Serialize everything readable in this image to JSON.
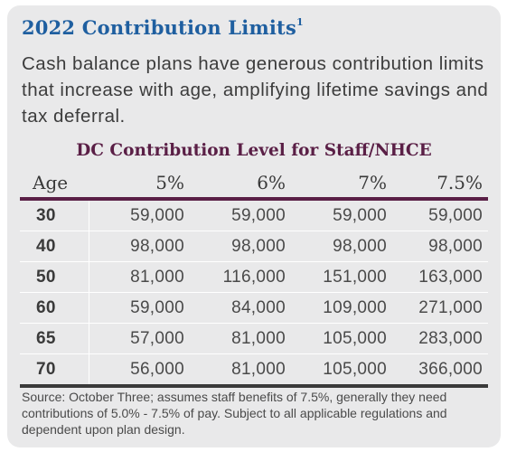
{
  "title": "2022 Contribution Limits",
  "title_sup": "1",
  "intro": "Cash balance plans have generous contribution limits that increase with age, amplifying lifetime savings and tax deferral.",
  "table": {
    "heading": "DC Contribution Level for Staff/NHCE",
    "columns": [
      "Age",
      "5%",
      "6%",
      "7%",
      "7.5%"
    ],
    "rows": [
      [
        "30",
        "59,000",
        "59,000",
        "59,000",
        "59,000"
      ],
      [
        "40",
        "98,000",
        "98,000",
        "98,000",
        "98,000"
      ],
      [
        "50",
        "81,000",
        "116,000",
        "151,000",
        "163,000"
      ],
      [
        "60",
        "59,000",
        "84,000",
        "109,000",
        "271,000"
      ],
      [
        "65",
        "57,000",
        "81,000",
        "105,000",
        "283,000"
      ],
      [
        "70",
        "56,000",
        "81,000",
        "105,000",
        "366,000"
      ]
    ]
  },
  "source": "Source: October Three; assumes staff benefits of 7.5%, generally they need contributions of 5.0% - 7.5% of pay. Subject to all applicable regulations and dependent upon plan design.",
  "colors": {
    "title": "#1f5fa0",
    "table_heading": "#5a1f46",
    "header_rule": "#5a1f46",
    "card_background": "#e9e9ea"
  }
}
